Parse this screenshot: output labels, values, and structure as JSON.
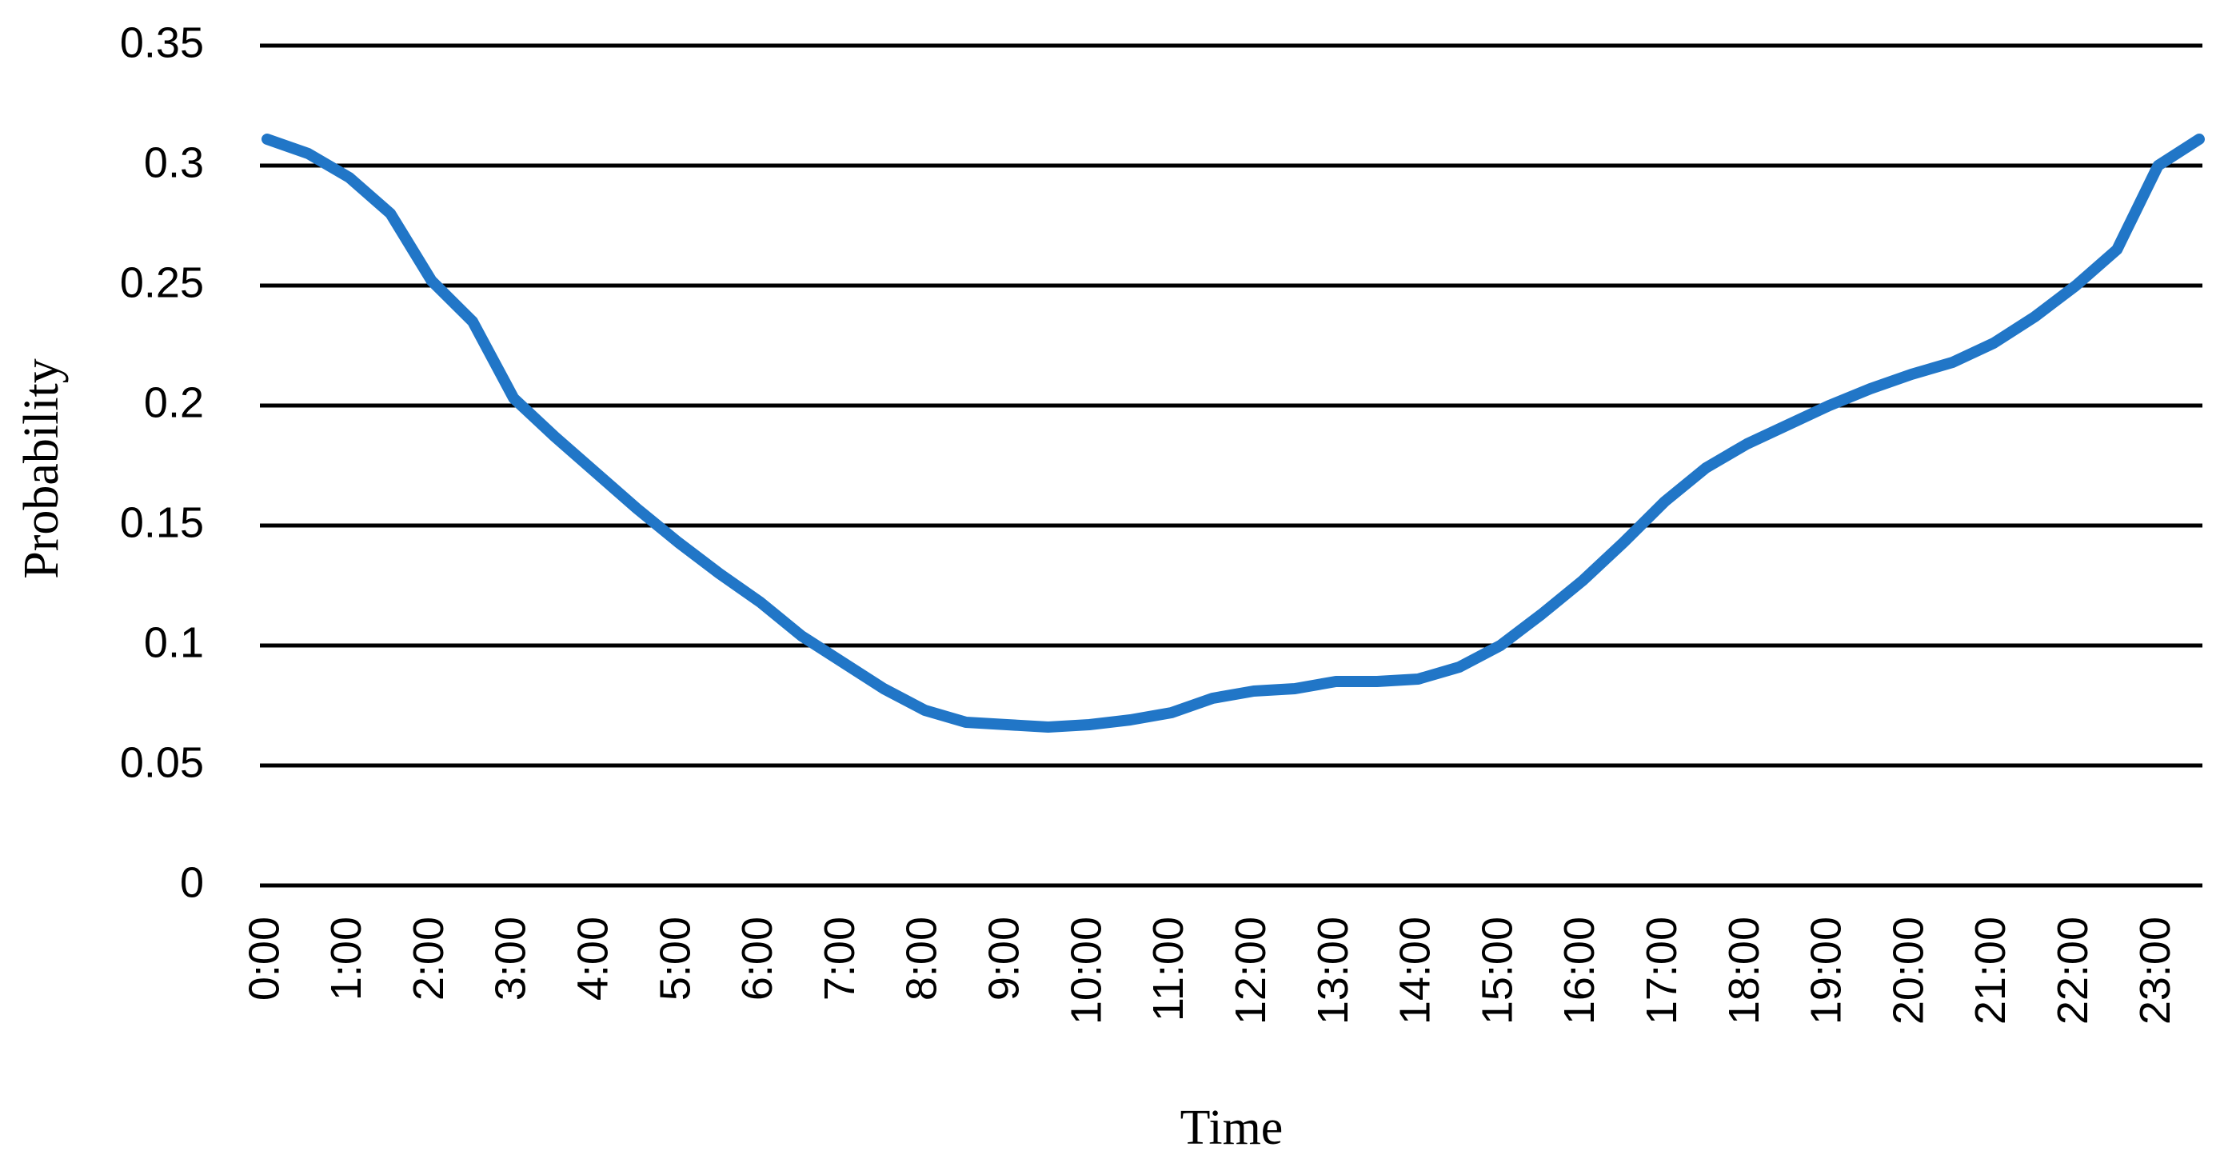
{
  "chart_data": {
    "type": "line",
    "x_label": "Time",
    "y_label": "Probability",
    "categories": [
      "0:00",
      null,
      "1:00",
      null,
      "2:00",
      null,
      "3:00",
      null,
      "4:00",
      null,
      "5:00",
      null,
      "6:00",
      null,
      "7:00",
      null,
      "8:00",
      null,
      "9:00",
      null,
      "10:00",
      null,
      "11:00",
      null,
      "12:00",
      null,
      "13:00",
      null,
      "14:00",
      null,
      "15:00",
      null,
      "16:00",
      null,
      "17:00",
      null,
      "18:00",
      null,
      "19:00",
      null,
      "20:00",
      null,
      "21:00",
      null,
      "22:00",
      null,
      "23:00",
      null
    ],
    "series": [
      {
        "name": "Probability",
        "color": "#2176c7",
        "values": [
          0.311,
          0.305,
          0.295,
          0.28,
          0.252,
          0.235,
          0.203,
          0.187,
          0.172,
          0.157,
          0.143,
          0.13,
          0.118,
          0.104,
          0.093,
          0.082,
          0.073,
          0.068,
          0.067,
          0.066,
          0.067,
          0.069,
          0.072,
          0.078,
          0.081,
          0.082,
          0.085,
          0.085,
          0.086,
          0.091,
          0.1,
          0.113,
          0.127,
          0.143,
          0.16,
          0.174,
          0.184,
          0.192,
          0.2,
          0.207,
          0.213,
          0.218,
          0.226,
          0.237,
          0.25,
          0.265,
          0.3,
          0.311
        ]
      }
    ],
    "ylim": [
      0,
      0.35
    ],
    "yticks": [
      0,
      0.05,
      0.1,
      0.15,
      0.2,
      0.25,
      0.3,
      0.35
    ],
    "grid": true
  }
}
